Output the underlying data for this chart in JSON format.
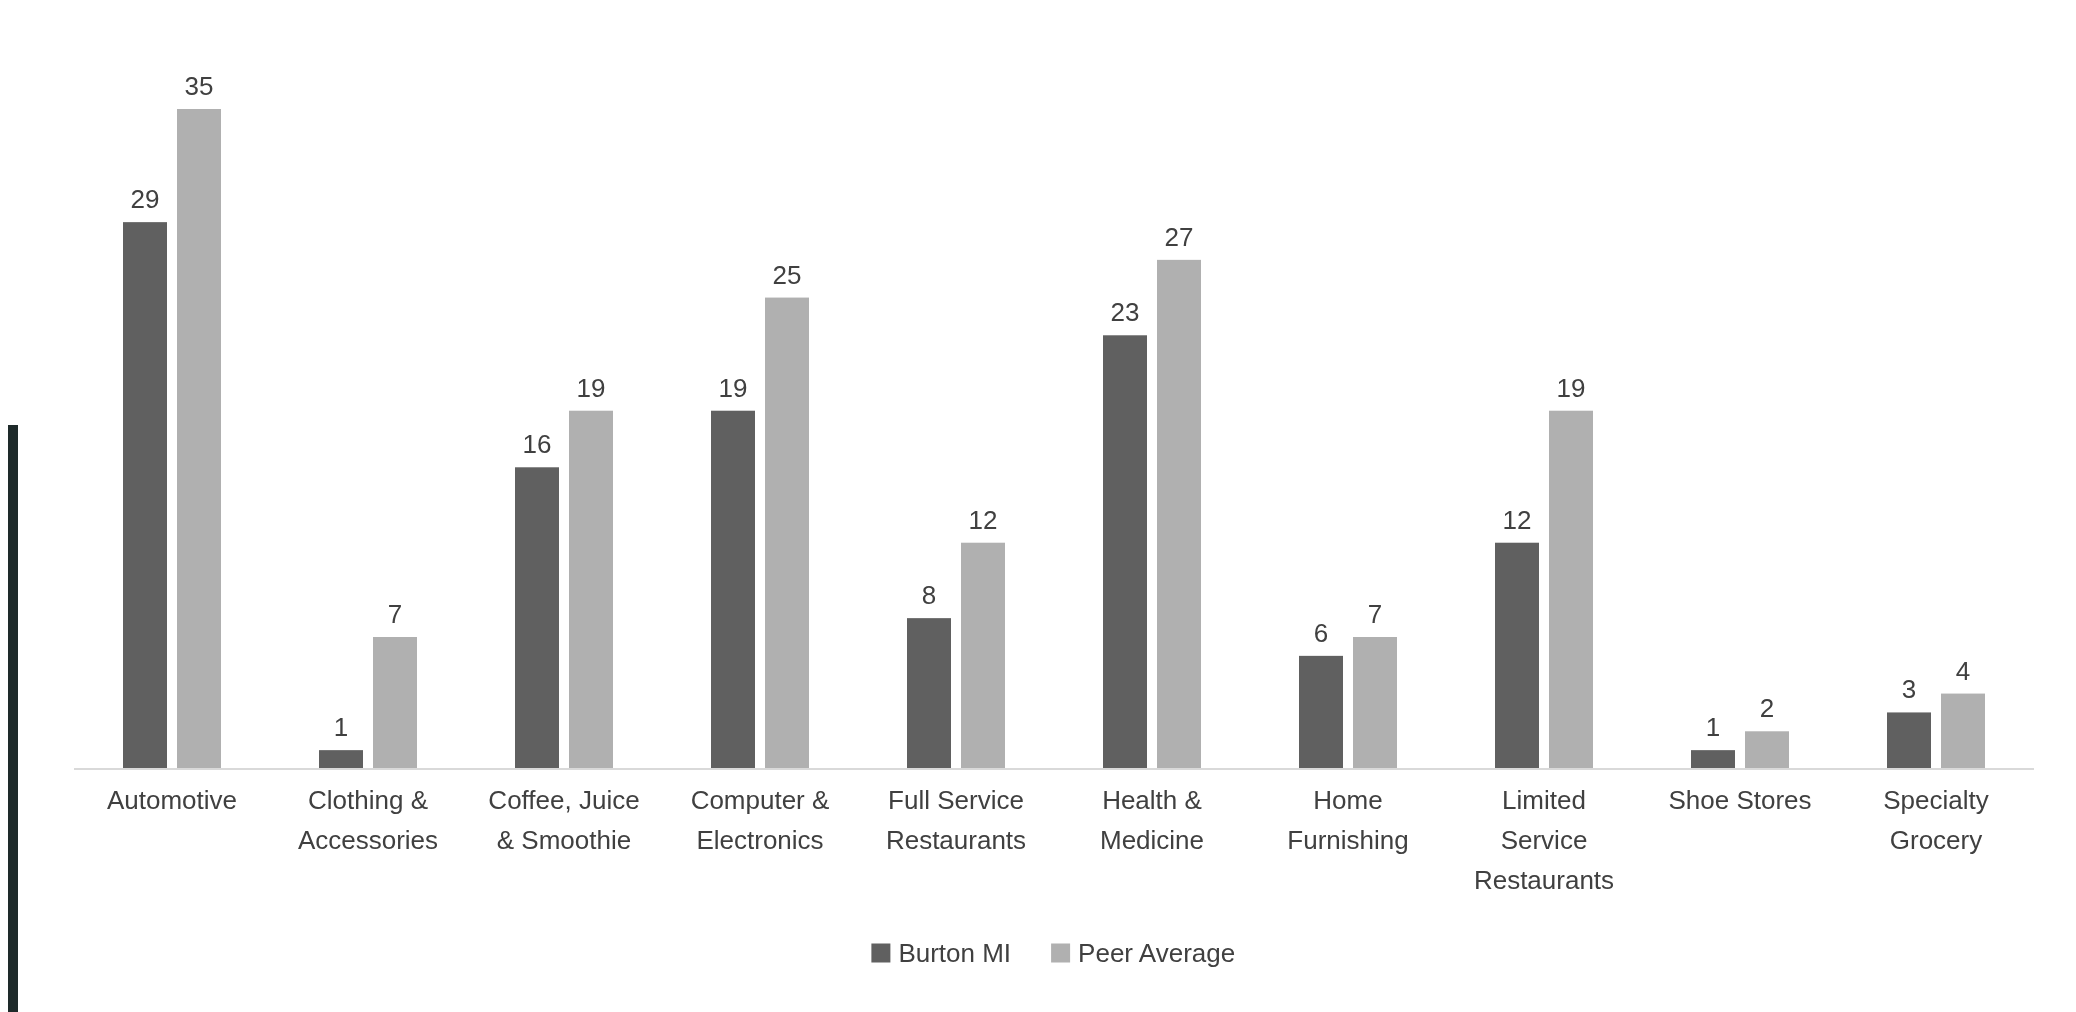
{
  "chart_data": {
    "type": "bar",
    "categories": [
      "Automotive",
      "Clothing & Accessories",
      "Coffee, Juice & Smoothie",
      "Computer & Electronics",
      "Full Service Restaurants",
      "Health & Medicine",
      "Home Furnishing",
      "Limited Service Restaurants",
      "Shoe Stores",
      "Specialty Grocery"
    ],
    "series": [
      {
        "name": "Burton MI",
        "color": "#606060",
        "values": [
          29,
          1,
          16,
          19,
          8,
          23,
          6,
          12,
          1,
          3
        ]
      },
      {
        "name": "Peer Average",
        "color": "#b0b0b0",
        "values": [
          35,
          7,
          19,
          25,
          12,
          27,
          7,
          19,
          2,
          4
        ]
      }
    ],
    "data_labels": true,
    "legend": "bottom"
  }
}
